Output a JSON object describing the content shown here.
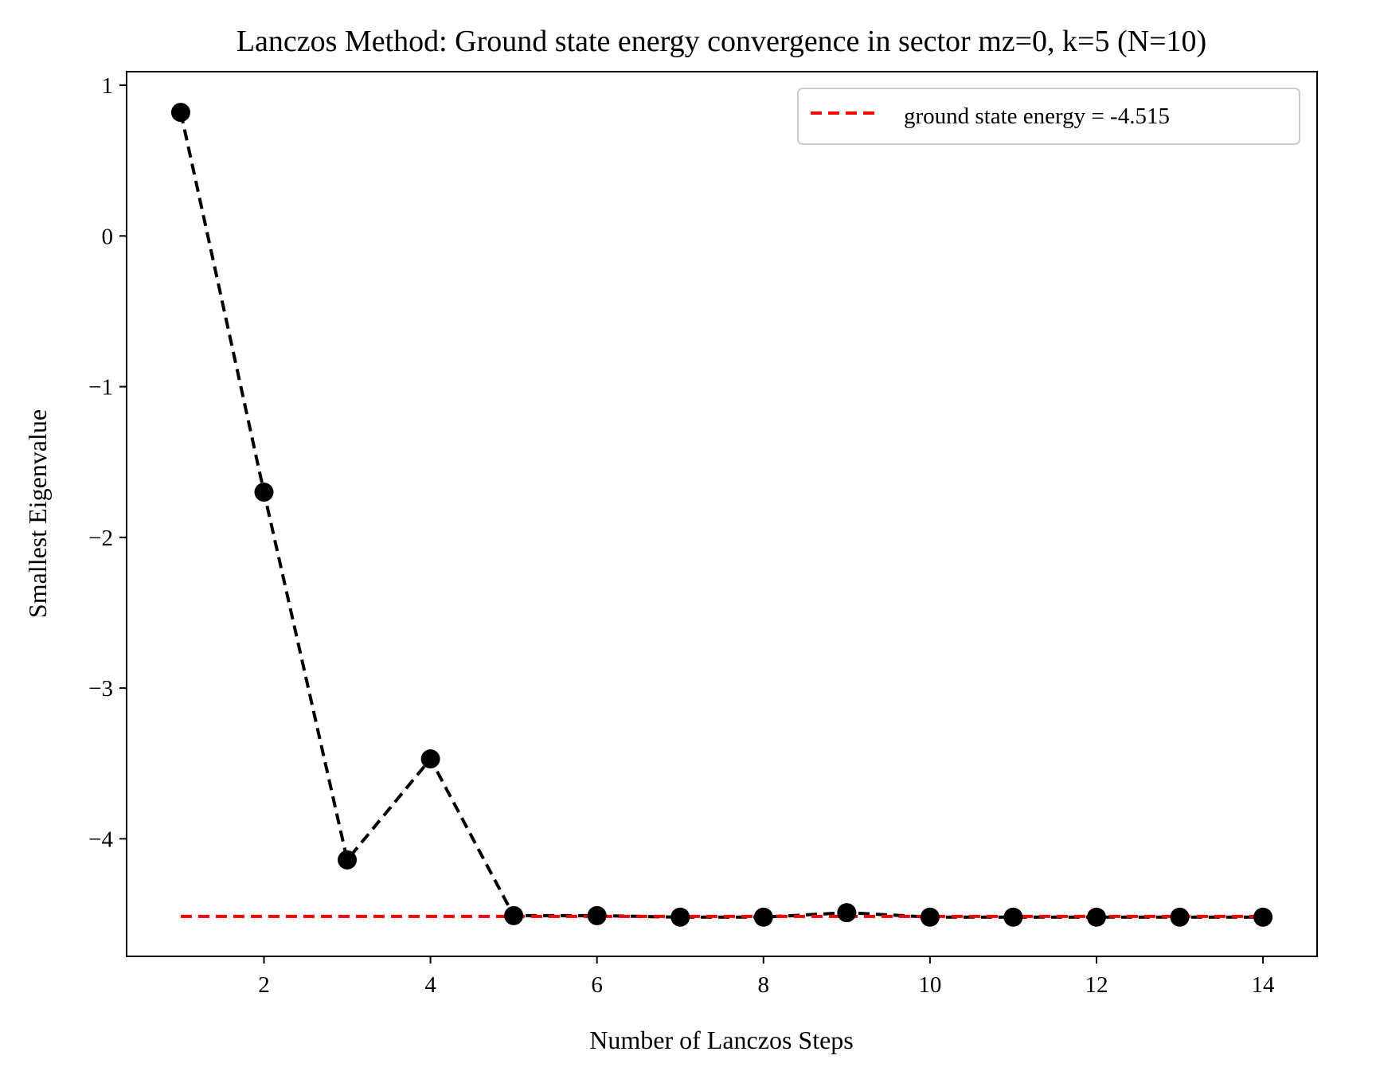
{
  "chart_data": {
    "type": "line",
    "title": "Lanczos Method: Ground state energy convergence in sector mz=0, k=5 (N=10)",
    "xlabel": "Number of Lanczos Steps",
    "ylabel": "Smallest Eigenvalue",
    "xlim": [
      0.35,
      14.65
    ],
    "ylim": [
      -4.78,
      1.09
    ],
    "xticks": [
      2,
      4,
      6,
      8,
      10,
      12,
      14
    ],
    "xtick_labels": [
      "2",
      "4",
      "6",
      "8",
      "10",
      "12",
      "14"
    ],
    "yticks": [
      1,
      0,
      -1,
      -2,
      -3,
      -4
    ],
    "ytick_labels": [
      "1",
      "0",
      "−1",
      "−2",
      "−3",
      "−4"
    ],
    "grid": false,
    "legend": {
      "position": "top-right",
      "entries": [
        "ground state energy = -4.515"
      ]
    },
    "series": [
      {
        "x": [
          1,
          2,
          3,
          4,
          5,
          6,
          7,
          8,
          9,
          10,
          11,
          12,
          13,
          14
        ],
        "values": [
          0.82,
          -1.7,
          -4.14,
          -3.47,
          -4.51,
          -4.51,
          -4.52,
          -4.52,
          -4.49,
          -4.52,
          -4.52,
          -4.52,
          -4.52,
          -4.52
        ],
        "style": "black dashed line with filled circle markers",
        "color": "#000000"
      }
    ],
    "reference_line": {
      "name": "ground state energy = -4.515",
      "y": -4.515,
      "x_range": [
        1,
        14
      ],
      "style": "dashed",
      "color": "#ff0000"
    }
  }
}
